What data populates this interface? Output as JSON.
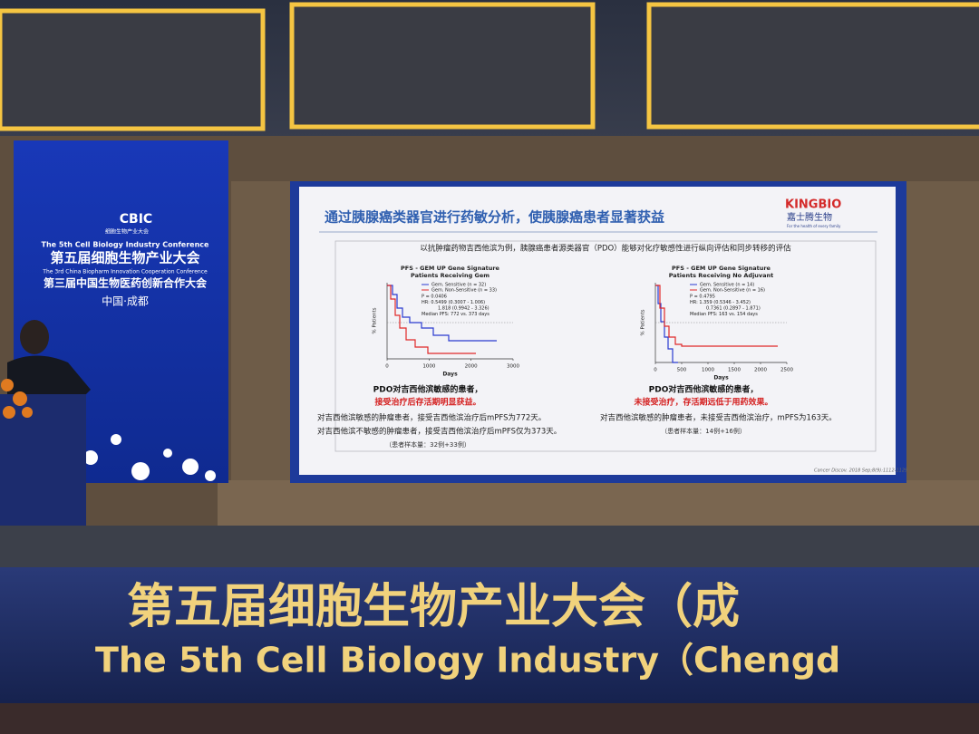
{
  "venue_banner": {
    "logo": "CBIC",
    "logo_sub": "细胞生物产业大会",
    "line1_en": "The 5th Cell Biology Industry Conference",
    "line1_cn": "第五届细胞生物产业大会",
    "line2_en": "The 3rd China Biopharm Innovation Cooperation Conference",
    "line2_cn": "第三届中国生物医药创新合作大会",
    "location": "中国·成都"
  },
  "slide": {
    "title": "通过胰腺癌类器官进行药敏分析，使胰腺癌患者显著获益",
    "brand": "KINGBIO",
    "brand_cn": "嘉士腾生物",
    "brand_tagline": "For the health of every family",
    "subtitle": "以抗肿瘤药物吉西他滨为例，胰腺癌患者源类器官（PDO）能够对化疗敏感性进行纵向评估和同步转移的评估",
    "charts": [
      {
        "title": "PFS - GEM UP Gene Signature",
        "subtitle": "Patients Receiving Gem",
        "legend": [
          "Gem. Sensitive (n = 32)",
          "Gem. Non-Sensitive (n = 33)"
        ],
        "stats": [
          "P = 0.0406",
          "HR:  0.5499 (0.3007 - 1.006)",
          "1.818 (0.9942 - 3.326)",
          "Median PFS: 772 vs. 373 days"
        ],
        "y_label": "% Patients",
        "x_label": "Days",
        "x_ticks": [
          0,
          1000,
          2000,
          3000
        ]
      },
      {
        "title": "PFS - GEM UP Gene Signature",
        "subtitle": "Patients Receiving No Adjuvant",
        "legend": [
          "Gem. Sensitive (n = 14)",
          "Gem. Non-Sensitive (n = 16)"
        ],
        "stats": [
          "P = 0.4795",
          "HR:  1.359 (0.5346 - 3.452)",
          "0.7361 (0.2897 - 1.871)",
          "Median PFS: 163 vs. 154 days"
        ],
        "y_label": "% Patients",
        "x_label": "Days",
        "x_ticks": [
          0,
          500,
          1000,
          1500,
          2000,
          2500
        ]
      }
    ],
    "panels": [
      {
        "heading": "PDO对吉西他滨敏感的患者，",
        "highlight": "接受治疗后存活期明显获益。",
        "lines": [
          "对吉西他滨敏感的肿瘤患者，接受吉西他滨治疗后mPFS为772天。",
          "对吉西他滨不敏感的肿瘤患者，接受吉西他滨治疗后mPFS仅为373天。"
        ],
        "sample": "（患者样本量：32例+33例）"
      },
      {
        "heading": "PDO对吉西他滨敏感的患者，",
        "highlight": "未接受治疗，存活期远低于用药效果。",
        "lines": [
          "对吉西他滨敏感的肿瘤患者，未接受吉西他滨治疗，mPFS为163天。"
        ],
        "sample": "（患者样本量：14例+16例）"
      }
    ],
    "citation": "Cancer Discov. 2018 Sep;8(9):1112-1129"
  },
  "stage_banner": {
    "cn": "第五届细胞生物产业大会（成",
    "en": "The 5th Cell Biology Industry（Chengd"
  }
}
